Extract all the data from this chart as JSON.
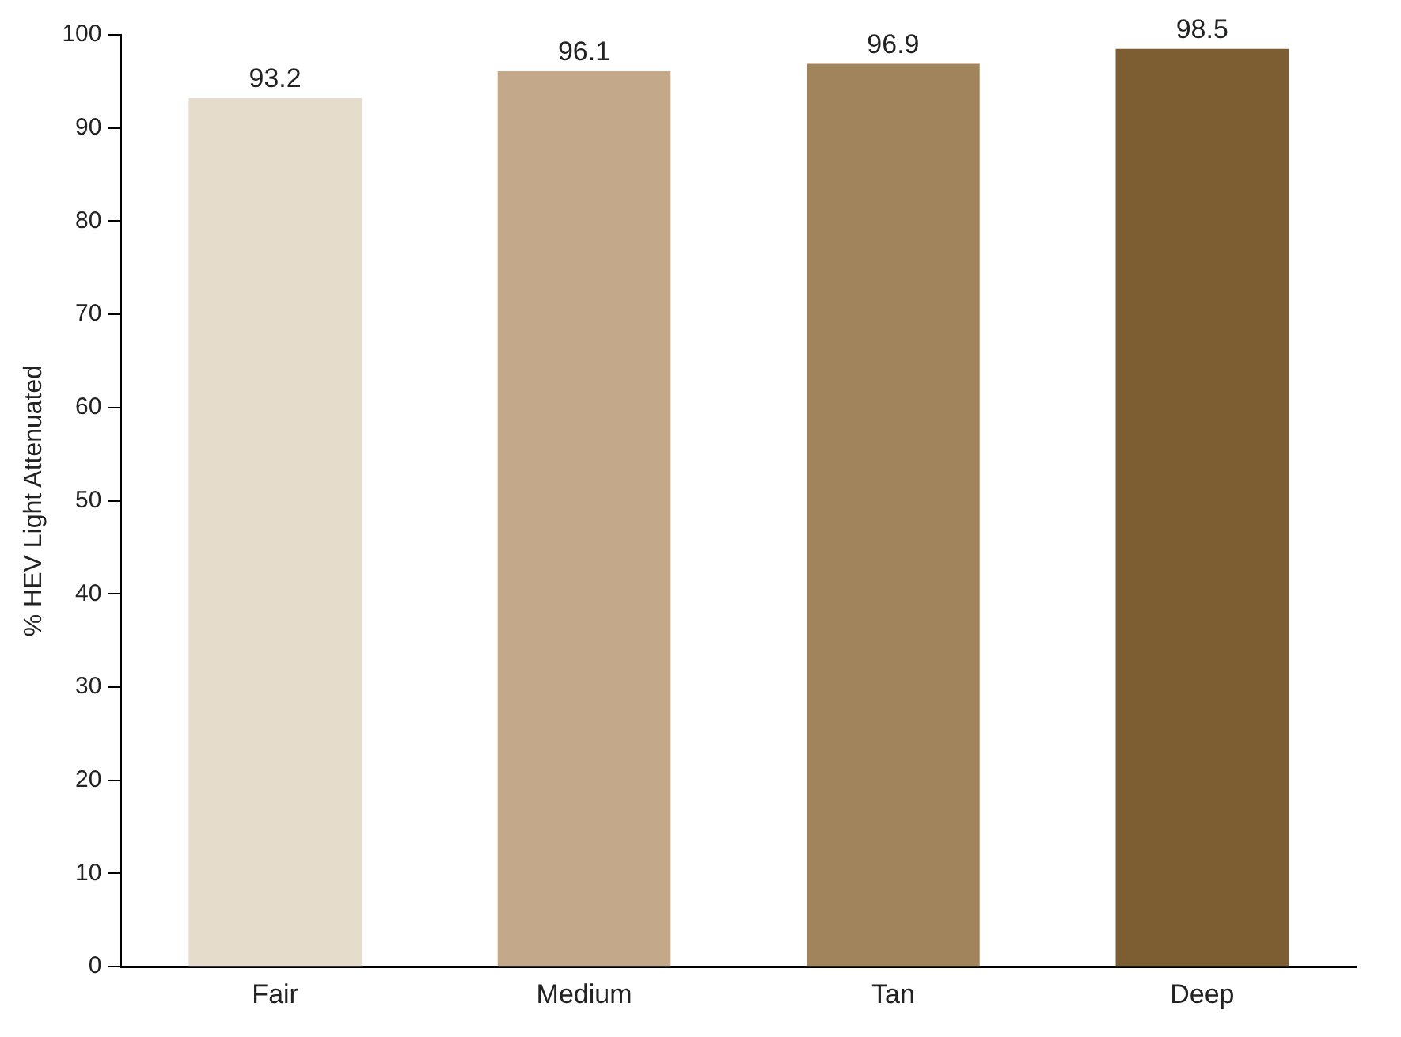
{
  "chart_data": {
    "type": "bar",
    "ylabel": "% HEV Light Attenuated",
    "categories": [
      "Fair",
      "Medium",
      "Tan",
      "Deep"
    ],
    "values": [
      93.2,
      96.1,
      96.9,
      98.5
    ],
    "colors": [
      "#e6dccb",
      "#c3a98a",
      "#a1835c",
      "#7d5e32"
    ],
    "ylim": [
      0,
      100
    ],
    "yticks": [
      0,
      10,
      20,
      30,
      40,
      50,
      60,
      70,
      80,
      90,
      100
    ],
    "grid": false,
    "legend": false,
    "data_labels": true
  }
}
